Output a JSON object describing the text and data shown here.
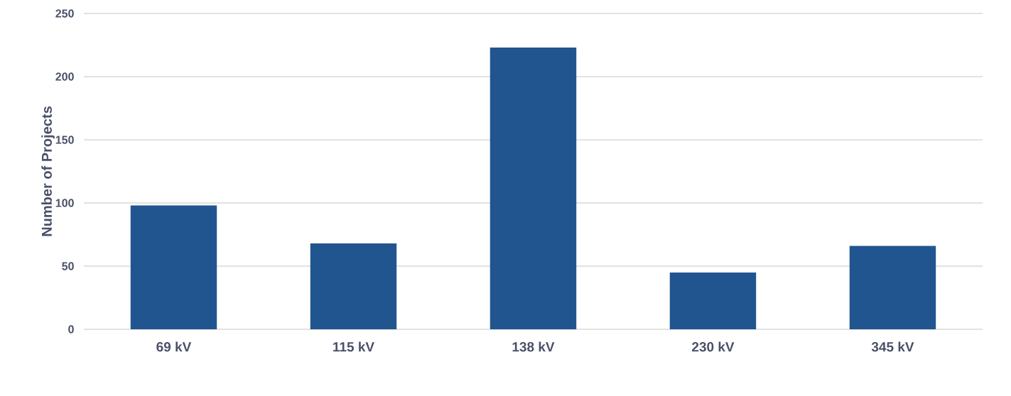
{
  "chart_data": {
    "type": "bar",
    "ylabel": "Number of Projects",
    "categories": [
      "69 kV",
      "115 kV",
      "138 kV",
      "230 kV",
      "345 kV"
    ],
    "values": [
      98,
      68,
      223,
      45,
      66
    ],
    "color": "#21558f",
    "ylim": [
      0,
      250
    ],
    "yticks": [
      0,
      50,
      100,
      150,
      200,
      250
    ],
    "grid": "y"
  }
}
